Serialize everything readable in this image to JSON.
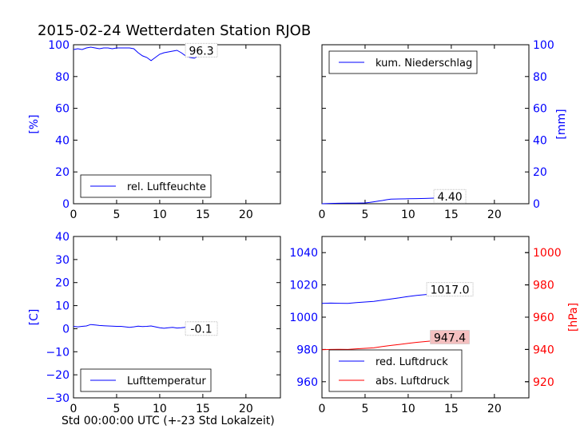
{
  "title": "2015-02-24 Wetterdaten Station RJOB",
  "xlabel": "Std 00:00:00 UTC (+-23 Std Lokalzeit)",
  "colors": {
    "axis_left": "#0000ff",
    "axis_right_pressure": "#ff0000",
    "series_blue": "#0000ff",
    "series_red": "#ff0000",
    "last_label_fill_red": "#f4c0c0"
  },
  "chart_data": [
    {
      "id": "humidity",
      "type": "line",
      "ylabel": "[%]",
      "xlim": [
        0,
        24
      ],
      "ylim": [
        0,
        100
      ],
      "xticks": [
        "0",
        "5",
        "10",
        "15",
        "20"
      ],
      "yticks": [
        "0",
        "20",
        "40",
        "60",
        "80",
        "100"
      ],
      "legend": {
        "position": "lower-left"
      },
      "last_label": "96.3",
      "series": [
        {
          "name": "rel. Luftfeuchte",
          "x": [
            0,
            0.5,
            1,
            1.5,
            2,
            2.5,
            3,
            3.5,
            4,
            4.5,
            5,
            5.5,
            6,
            6.5,
            7,
            7.5,
            8,
            8.5,
            9,
            9.5,
            10,
            10.5,
            11,
            11.5,
            12,
            12.5,
            13,
            13.5,
            14,
            14.5,
            15,
            15.5,
            16,
            16.5
          ],
          "y": [
            97,
            97.5,
            97,
            98,
            98.5,
            98,
            97.5,
            98,
            98,
            97.5,
            98,
            98,
            98,
            98,
            97.5,
            95,
            93,
            92,
            90,
            92,
            94,
            95,
            95.5,
            96,
            96.5,
            95,
            93,
            92,
            91.5,
            93,
            94,
            95,
            95.5,
            96.3
          ]
        }
      ]
    },
    {
      "id": "precipitation",
      "type": "line",
      "ylabel": "[mm]",
      "xlim": [
        0,
        24
      ],
      "ylim": [
        0,
        100
      ],
      "xticks": [
        "0",
        "5",
        "10",
        "15",
        "20"
      ],
      "yticks": [
        "0",
        "20",
        "40",
        "60",
        "80",
        "100"
      ],
      "legend": {
        "position": "upper-left"
      },
      "last_label": "4.40",
      "series": [
        {
          "name": "kum. Niederschlag",
          "x": [
            0,
            1,
            2,
            3,
            4,
            5,
            5.5,
            6,
            6.5,
            7,
            7.5,
            8,
            9,
            10,
            11,
            12,
            13,
            14,
            15,
            16,
            16.5
          ],
          "y": [
            0,
            0.2,
            0.3,
            0.4,
            0.4,
            0.5,
            0.8,
            1.2,
            1.6,
            2,
            2.5,
            2.9,
            3,
            3.1,
            3.2,
            3.3,
            3.5,
            3.8,
            4.1,
            4.3,
            4.4
          ]
        }
      ]
    },
    {
      "id": "temperature",
      "type": "line",
      "ylabel": "[C]",
      "xlim": [
        0,
        24
      ],
      "ylim": [
        -30,
        40
      ],
      "xticks": [
        "0",
        "5",
        "10",
        "15",
        "20"
      ],
      "yticks": [
        "−30",
        "−20",
        "−10",
        "0",
        "10",
        "20",
        "30",
        "40"
      ],
      "legend": {
        "position": "lower-left"
      },
      "last_label": "-0.1",
      "series": [
        {
          "name": "Lufttemperatur",
          "x": [
            0,
            0.5,
            1,
            1.5,
            2,
            2.5,
            3,
            3.5,
            4,
            4.5,
            5,
            5.5,
            6,
            6.5,
            7,
            7.5,
            8,
            8.5,
            9,
            9.5,
            10,
            10.5,
            11,
            11.5,
            12,
            12.5,
            13,
            13.5,
            14,
            14.5,
            15,
            15.5,
            16,
            16.5
          ],
          "y": [
            1,
            0.8,
            1,
            1.2,
            1.8,
            1.6,
            1.4,
            1.3,
            1.2,
            1.1,
            1,
            1,
            0.8,
            0.6,
            0.8,
            1.1,
            0.9,
            1,
            1.2,
            0.8,
            0.4,
            0.2,
            0.4,
            0.6,
            0.3,
            0.4,
            0.6,
            0.5,
            0.2,
            0.3,
            0.4,
            0.1,
            0,
            -0.1
          ]
        }
      ]
    },
    {
      "id": "pressure",
      "type": "line",
      "ylabel_right": "[hPa]",
      "xlim": [
        0,
        24
      ],
      "ylim_left": [
        950,
        1050
      ],
      "ylim_right": [
        910,
        1010
      ],
      "xticks": [
        "0",
        "5",
        "10",
        "15",
        "20"
      ],
      "yticks_left": [
        "960",
        "980",
        "1000",
        "1020",
        "1040"
      ],
      "yticks_right": [
        "920",
        "940",
        "960",
        "980",
        "1000"
      ],
      "legend": {
        "position": "lower-left"
      },
      "last_label_left": "1017.0",
      "last_label_right": "947.4",
      "series": [
        {
          "name": "red. Luftdruck",
          "axis": "left",
          "x": [
            0,
            1,
            2,
            3,
            4,
            5,
            6,
            7,
            8,
            9,
            10,
            11,
            12,
            13,
            14,
            15,
            16,
            16.5
          ],
          "y": [
            1008.5,
            1008.7,
            1008.6,
            1008.5,
            1009,
            1009.4,
            1009.8,
            1010.5,
            1011.3,
            1012,
            1012.8,
            1013.5,
            1014,
            1014.6,
            1015.2,
            1015.8,
            1016.4,
            1017
          ]
        },
        {
          "name": "abs. Luftdruck",
          "axis": "right",
          "x": [
            0,
            1,
            2,
            3,
            4,
            5,
            6,
            7,
            8,
            9,
            10,
            11,
            12,
            13,
            14,
            15,
            16,
            16.5
          ],
          "y": [
            939.8,
            940,
            940.1,
            940,
            940.4,
            940.7,
            941,
            941.8,
            942.5,
            943.1,
            943.8,
            944.4,
            944.9,
            945.4,
            946,
            946.5,
            947,
            947.4
          ]
        }
      ]
    }
  ]
}
